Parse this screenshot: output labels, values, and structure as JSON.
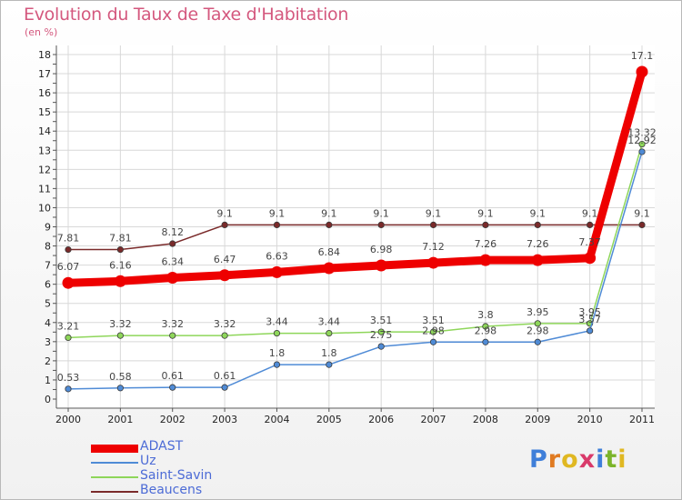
{
  "header": {
    "title": "Evolution du Taux de Taxe d'Habitation",
    "subtitle": "(en %)"
  },
  "logo": {
    "letters": [
      "P",
      "r",
      "o",
      "x",
      "i",
      "t",
      "i"
    ],
    "colors": [
      "#3f7fd9",
      "#e07b22",
      "#e0b822",
      "#d93a6a",
      "#3f7fd9",
      "#7bb42a",
      "#e0b822"
    ]
  },
  "chart_data": {
    "type": "line",
    "title": "Evolution du Taux de Taxe d'Habitation",
    "ylabel": "(en %)",
    "xlabel": "",
    "ylim": [
      0,
      18
    ],
    "yticks": [
      0,
      1,
      2,
      3,
      4,
      5,
      6,
      7,
      8,
      9,
      10,
      11,
      12,
      13,
      14,
      15,
      16,
      17,
      18
    ],
    "grid": true,
    "legend_position": "bottom-left",
    "x": [
      "2000",
      "2001",
      "2002",
      "2003",
      "2004",
      "2005",
      "2006",
      "2007",
      "2008",
      "2009",
      "2010",
      "2011"
    ],
    "series": [
      {
        "name": "ADAST",
        "color": "#ee0000",
        "values": [
          6.07,
          6.16,
          6.34,
          6.47,
          6.63,
          6.84,
          6.98,
          7.12,
          7.26,
          7.26,
          7.37,
          17.1
        ],
        "labels": [
          "6.07",
          "6.16",
          "6.34",
          "6.47",
          "6.63",
          "6.84",
          "6.98",
          "7.12",
          "7.26",
          "7.26",
          "7.37",
          "17.1"
        ]
      },
      {
        "name": "Uz",
        "color": "#4f8bd6",
        "values": [
          0.53,
          0.58,
          0.61,
          0.61,
          1.8,
          1.8,
          2.75,
          2.98,
          2.98,
          2.98,
          3.57,
          12.92
        ],
        "labels": [
          "0.53",
          "0.58",
          "0.61",
          "0.61",
          "1.8",
          "1.8",
          "2.75",
          "2.98",
          "2.98",
          "2.98",
          "3.57",
          "12.92"
        ]
      },
      {
        "name": "Saint-Savin",
        "color": "#8ed65a",
        "values": [
          3.21,
          3.32,
          3.32,
          3.32,
          3.44,
          3.44,
          3.51,
          3.51,
          3.8,
          3.95,
          3.95,
          13.32
        ],
        "labels": [
          "3.21",
          "3.32",
          "3.32",
          "3.32",
          "3.44",
          "3.44",
          "3.51",
          "3.51",
          "3.8",
          "3.95",
          "3.95",
          "13.32"
        ]
      },
      {
        "name": "Beaucens",
        "color": "#7a2a2a",
        "values": [
          7.81,
          7.81,
          8.12,
          9.1,
          9.1,
          9.1,
          9.1,
          9.1,
          9.1,
          9.1,
          9.1,
          9.1
        ],
        "labels": [
          "7.81",
          "7.81",
          "8.12",
          "9.1",
          "9.1",
          "9.1",
          "9.1",
          "9.1",
          "9.1",
          "9.1",
          "9.1",
          "9.1"
        ]
      }
    ]
  }
}
